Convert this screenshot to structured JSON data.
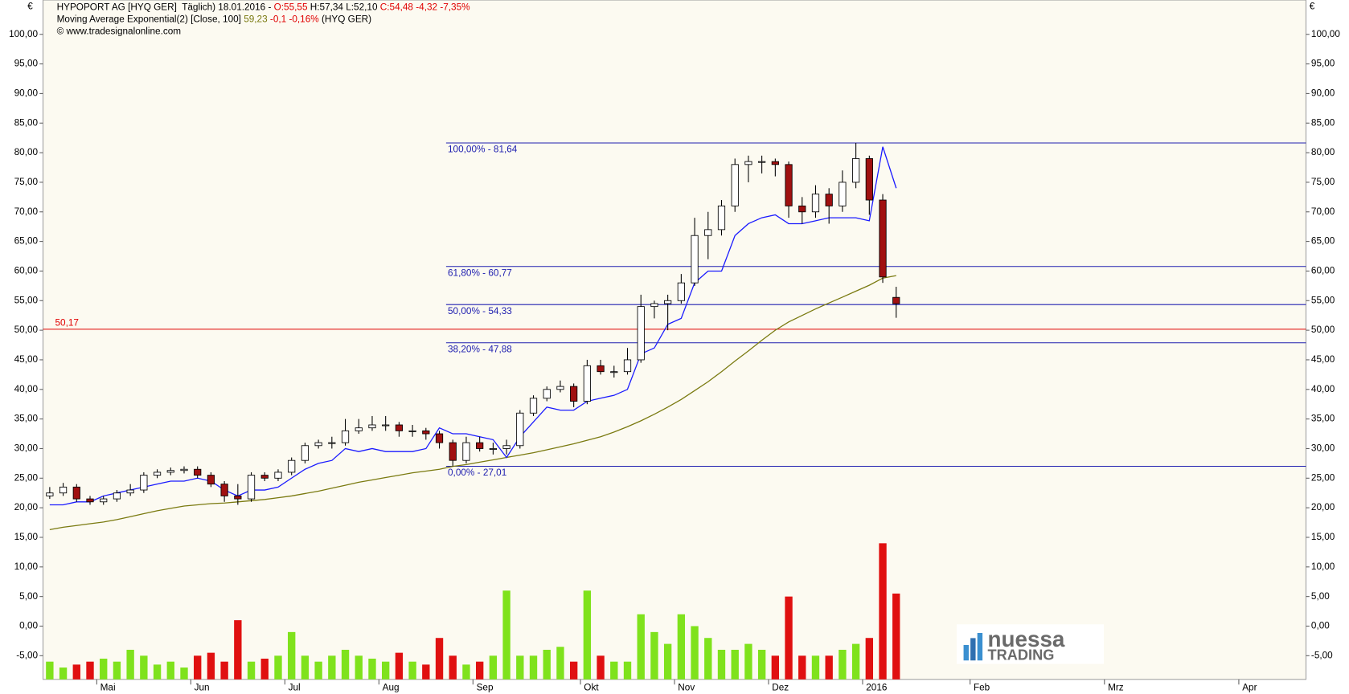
{
  "chart_data": {
    "type": "candlestick",
    "currency": "€",
    "legend": [
      [
        {
          "text": "HYPOPORT AG [HYQ GER]  Täglich) 18.01.2016 - ",
          "color": "#000000"
        },
        {
          "text": "O:55,55",
          "color": "#e00000"
        },
        {
          "text": " H:57,34 L:52,10 ",
          "color": "#000000"
        },
        {
          "text": "C:54,48 -4,32 -7,35%",
          "color": "#e00000"
        }
      ],
      [
        {
          "text": "Moving Average Exponential(2) [Close, 100] ",
          "color": "#000000"
        },
        {
          "text": "59,23",
          "color": "#7a7a10"
        },
        {
          "text": " -0,1 -0,16%",
          "color": "#e00000"
        },
        {
          "text": " (HYQ GER)",
          "color": "#000000"
        }
      ],
      [
        {
          "text": "© www.tradesignalonline.com",
          "color": "#000000"
        }
      ]
    ],
    "ylim": [
      -9,
      105.8
    ],
    "yticks": [
      {
        "value": 100,
        "label": "100,00"
      },
      {
        "value": 95,
        "label": "95,00"
      },
      {
        "value": 90,
        "label": "90,00"
      },
      {
        "value": 85,
        "label": "85,00"
      },
      {
        "value": 80,
        "label": "80,00"
      },
      {
        "value": 75,
        "label": "75,00"
      },
      {
        "value": 70,
        "label": "70,00"
      },
      {
        "value": 65,
        "label": "65,00"
      },
      {
        "value": 60,
        "label": "60,00"
      },
      {
        "value": 55,
        "label": "55,00"
      },
      {
        "value": 50,
        "label": "50,00"
      },
      {
        "value": 45,
        "label": "45,00"
      },
      {
        "value": 40,
        "label": "40,00"
      },
      {
        "value": 35,
        "label": "35,00"
      },
      {
        "value": 30,
        "label": "30,00"
      },
      {
        "value": 25,
        "label": "25,00"
      },
      {
        "value": 20,
        "label": "20,00"
      },
      {
        "value": 15,
        "label": "15,00"
      },
      {
        "value": 10,
        "label": "10,00"
      },
      {
        "value": 5,
        "label": "5,00"
      },
      {
        "value": 0,
        "label": "0,00"
      },
      {
        "value": -5,
        "label": "-5,00"
      }
    ],
    "categories": [
      null,
      null,
      null,
      null,
      "Mai",
      null,
      null,
      null,
      null,
      null,
      null,
      "Jun",
      null,
      null,
      null,
      null,
      null,
      null,
      "Jul",
      null,
      null,
      null,
      null,
      null,
      null,
      "Aug",
      null,
      null,
      null,
      null,
      null,
      null,
      "Sep",
      null,
      null,
      null,
      null,
      null,
      null,
      null,
      "Okt",
      null,
      null,
      null,
      null,
      null,
      null,
      "Nov",
      null,
      null,
      null,
      null,
      null,
      null,
      "Dez",
      null,
      null,
      null,
      null,
      null,
      null,
      "2016",
      null,
      null,
      null,
      null,
      null,
      null,
      null,
      "Feb",
      null,
      null,
      null,
      null,
      null,
      null,
      null,
      null,
      null,
      "Mrz",
      null,
      null,
      null,
      null,
      null,
      null,
      null,
      null,
      null,
      "Apr",
      null,
      null,
      null,
      null
    ],
    "open": [
      22,
      22.5,
      23.5,
      21.5,
      21,
      21.5,
      22.5,
      23,
      25.5,
      26,
      26.3,
      26.5,
      25.5,
      24,
      22,
      21.5,
      25.5,
      25,
      26,
      28,
      30.5,
      31,
      31,
      33,
      33.5,
      34,
      34,
      33,
      33,
      32.5,
      31,
      28,
      31,
      30,
      30,
      30.5,
      36,
      38.5,
      40,
      40.5,
      38,
      44,
      43,
      43,
      45,
      54,
      54.5,
      55,
      58,
      66,
      67,
      71,
      78,
      78.5,
      78.5,
      78,
      71,
      70,
      73,
      71,
      75,
      79,
      72,
      55.55,
      null,
      null,
      null,
      null,
      null,
      null,
      null,
      null,
      null,
      null,
      null,
      null,
      null,
      null,
      null,
      null,
      null,
      null,
      null,
      null,
      null,
      null,
      null,
      null,
      null,
      null,
      null,
      null,
      null,
      null
    ],
    "high": [
      23.5,
      24.2,
      24,
      22,
      22,
      23,
      24,
      26,
      26.5,
      26.8,
      27,
      27,
      26,
      24.5,
      24,
      26,
      26,
      26.5,
      28.5,
      31,
      31.5,
      32,
      35,
      35,
      35.5,
      35.5,
      34.5,
      34,
      33.5,
      33,
      31.5,
      32,
      32,
      31,
      31.5,
      36.5,
      39,
      40.5,
      41.5,
      41,
      45,
      45,
      44,
      47,
      56,
      55,
      56,
      59.5,
      69,
      70,
      72,
      79,
      79.5,
      79.5,
      79,
      78.5,
      72.5,
      74.5,
      74,
      77,
      81.64,
      79.5,
      73,
      57.34,
      null,
      null,
      null,
      null,
      null,
      null,
      null,
      null,
      null,
      null,
      null,
      null,
      null,
      null,
      null,
      null,
      null,
      null,
      null,
      null,
      null,
      null,
      null,
      null,
      null,
      null,
      null,
      null,
      null,
      null
    ],
    "low": [
      21.5,
      22,
      21,
      20.5,
      20.5,
      21,
      22,
      22.5,
      25,
      25.5,
      25.8,
      25,
      23.5,
      21,
      20.5,
      21,
      24.5,
      24.5,
      25.5,
      27.5,
      30,
      30,
      30.5,
      32.5,
      33,
      33,
      32,
      32,
      31.5,
      30,
      27,
      27.5,
      29.5,
      29,
      29,
      30,
      35.5,
      38,
      39.5,
      37,
      37.5,
      42.5,
      42,
      42.5,
      44.5,
      52,
      50,
      54.5,
      57.5,
      62,
      66,
      70,
      75,
      76.5,
      76,
      69,
      68,
      69,
      68,
      70,
      74,
      69.5,
      58,
      52.1,
      null,
      null,
      null,
      null,
      null,
      null,
      null,
      null,
      null,
      null,
      null,
      null,
      null,
      null,
      null,
      null,
      null,
      null,
      null,
      null,
      null,
      null,
      null,
      null,
      null,
      null,
      null,
      null,
      null,
      null
    ],
    "close": [
      22.5,
      23.5,
      21.5,
      21,
      21.5,
      22.5,
      23,
      25.5,
      26,
      26.3,
      26.5,
      25.5,
      24,
      22,
      21.5,
      25.5,
      25,
      26,
      28,
      30.5,
      31,
      31,
      33,
      33.5,
      34,
      34,
      33,
      33,
      32.5,
      31,
      28,
      31,
      30,
      30,
      30.5,
      36,
      38.5,
      40,
      40.5,
      38,
      44,
      43,
      43,
      45,
      54,
      54.5,
      55,
      58,
      66,
      67,
      71,
      78,
      78.5,
      78.5,
      78,
      71,
      70,
      73,
      71,
      75,
      79,
      72,
      59,
      54.48,
      null,
      null,
      null,
      null,
      null,
      null,
      null,
      null,
      null,
      null,
      null,
      null,
      null,
      null,
      null,
      null,
      null,
      null,
      null,
      null,
      null,
      null,
      null,
      null,
      null,
      null,
      null,
      null,
      null,
      null
    ],
    "volume": [
      -6,
      -7,
      -6.5,
      -6,
      -5.5,
      -6,
      -4,
      -5,
      -6.5,
      -6,
      -7,
      -5,
      -4.5,
      -6,
      1,
      -6,
      -5.5,
      -5,
      -1,
      -5,
      -6,
      -5,
      -4,
      -5,
      -5.5,
      -6,
      -4.5,
      -6,
      -6.5,
      -2,
      -5,
      -6.5,
      -6,
      -5,
      6,
      -5,
      -5,
      -4,
      -3.5,
      -6,
      6,
      -5,
      -6,
      -6,
      2,
      -1,
      -3,
      2,
      0,
      -2,
      -4,
      -4,
      -3,
      -4,
      -5,
      5,
      -5,
      -5,
      -5,
      -4,
      -3,
      -2,
      14,
      5.5,
      null,
      null,
      null,
      null,
      null,
      null,
      null,
      null,
      null,
      null,
      null,
      null,
      null,
      null,
      null,
      null,
      null,
      null,
      null,
      null,
      null,
      null,
      null,
      null,
      null,
      null,
      null,
      null,
      null,
      null
    ],
    "up_color": "#7fe21c",
    "down_color": "#e01010",
    "candle_up_color": "#ffffff",
    "candle_down_color": "#a01010",
    "lines": [
      {
        "color": "#7a7a10",
        "values": [
          16.3,
          16.7,
          17,
          17.3,
          17.6,
          18,
          18.5,
          19,
          19.5,
          19.9,
          20.3,
          20.5,
          20.7,
          20.8,
          21,
          21.2,
          21.4,
          21.7,
          22,
          22.4,
          22.8,
          23.3,
          23.8,
          24.3,
          24.7,
          25.1,
          25.5,
          25.9,
          26.2,
          26.5,
          27,
          27.3,
          27.7,
          28.1,
          28.5,
          28.9,
          29.3,
          29.8,
          30.3,
          30.8,
          31.4,
          32,
          32.8,
          33.7,
          34.7,
          35.8,
          37,
          38.3,
          39.8,
          41.3,
          43,
          44.8,
          46.5,
          48.3,
          50,
          51.4,
          52.5,
          53.6,
          54.6,
          55.6,
          56.6,
          57.6,
          58.8,
          59.23,
          null,
          null,
          null,
          null,
          null,
          null,
          null,
          null,
          null,
          null,
          null,
          null,
          null,
          null,
          null,
          null,
          null,
          null,
          null,
          null,
          null,
          null,
          null,
          null,
          null,
          null,
          null,
          null,
          null,
          null
        ]
      },
      {
        "color": "#1a1aff",
        "values": [
          20.5,
          20.5,
          21,
          21,
          22,
          22.5,
          23,
          23.5,
          24,
          24.5,
          24.5,
          25,
          24.5,
          23,
          22,
          23,
          23,
          23.5,
          25,
          26.5,
          27.5,
          28,
          30,
          29.5,
          30,
          29.5,
          29.5,
          29.5,
          30,
          33.5,
          32.5,
          32.5,
          32,
          31.5,
          28.5,
          32,
          34.5,
          37,
          36.5,
          36.5,
          38,
          38.5,
          39,
          40,
          46,
          47,
          51,
          52,
          58,
          60,
          60,
          66,
          68,
          69,
          69.5,
          68,
          68,
          68.5,
          69,
          69,
          69,
          68.5,
          81,
          74,
          null,
          null,
          null,
          null,
          null,
          null,
          null,
          null,
          null,
          null,
          null,
          null,
          null,
          null,
          null,
          null,
          null,
          null,
          null,
          null,
          null,
          null,
          null,
          null,
          null,
          null,
          null,
          null,
          null,
          null
        ]
      }
    ],
    "levels": [
      {
        "label": "100,00% - 81,64",
        "value": 81.64
      },
      {
        "label": "61,80% - 60,77",
        "value": 60.77
      },
      {
        "label": "50,00% - 54,33",
        "value": 54.33
      },
      {
        "label": "38,20% - 47,88",
        "value": 47.88
      },
      {
        "label": "0,00% - 27,01",
        "value": 27.01
      }
    ],
    "level_color": "#2020b0",
    "mark_line": {
      "label": "50,17",
      "value": 50.17,
      "color": "#e00000"
    },
    "logo": {
      "top": "nuessa",
      "bottom": "TRADING"
    }
  }
}
